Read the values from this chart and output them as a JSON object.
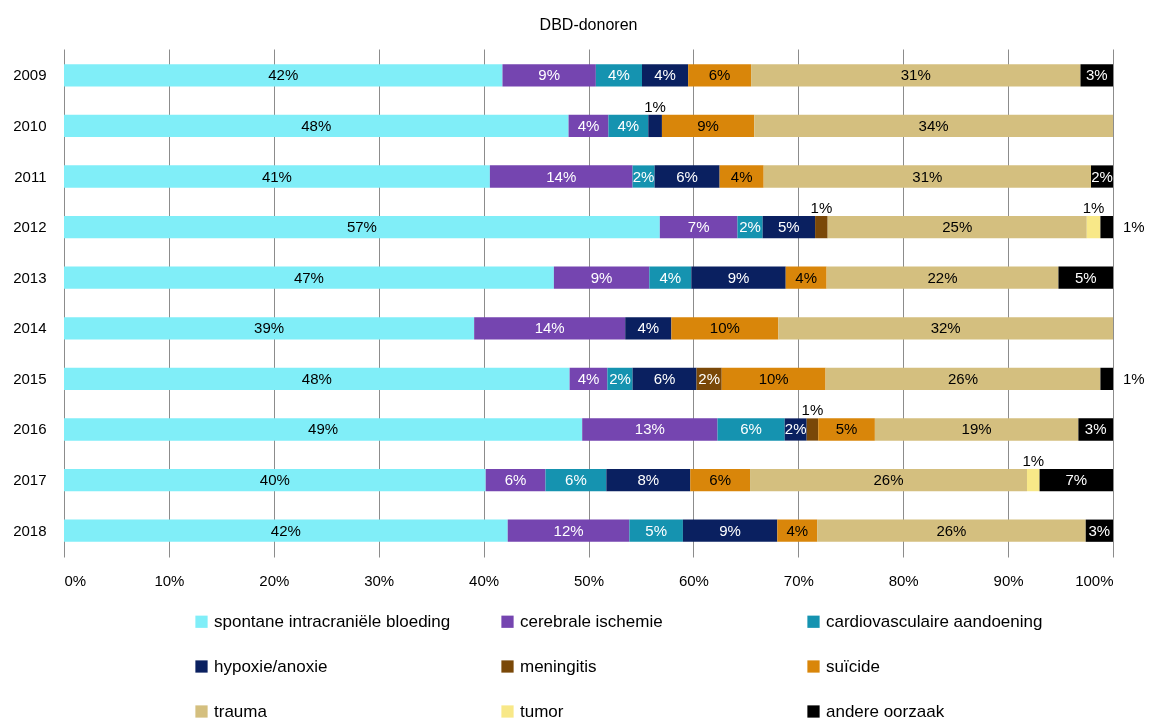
{
  "chart_data": {
    "type": "bar",
    "title": "DBD-donoren",
    "orientation": "horizontal",
    "stacked": true,
    "categories": [
      "2009",
      "2010",
      "2011",
      "2012",
      "2013",
      "2014",
      "2015",
      "2016",
      "2017",
      "2018"
    ],
    "series": [
      {
        "name": "spontane intracraniële bloeding",
        "color": "#80eef8",
        "values": [
          41.8,
          48.1,
          40.6,
          56.8,
          46.7,
          39.1,
          48.2,
          49.4,
          40.2,
          42.3
        ],
        "value_labels": [
          "42%",
          "48%",
          "41%",
          "57%",
          "47%",
          "39%",
          "48%",
          "49%",
          "40%",
          "42%"
        ]
      },
      {
        "name": "cerebrale ischemie",
        "color": "#7545b0",
        "values": [
          8.9,
          3.8,
          13.6,
          7.4,
          9.1,
          14.4,
          3.6,
          12.9,
          5.7,
          11.6
        ],
        "value_labels": [
          "9%",
          "4%",
          "14%",
          "7%",
          "9%",
          "14%",
          "4%",
          "13%",
          "6%",
          "12%"
        ]
      },
      {
        "name": "cardiovasculaire aandoening",
        "color": "#1593b0",
        "values": [
          4.4,
          3.8,
          2.1,
          2.4,
          4.0,
          null,
          2.4,
          6.4,
          5.8,
          5.1
        ],
        "value_labels": [
          "4%",
          "4%",
          "2%",
          "2%",
          "4%",
          null,
          "2%",
          "6%",
          "6%",
          "5%"
        ]
      },
      {
        "name": "hypoxie/anoxie",
        "color": "#0a2060",
        "values": [
          4.4,
          1.3,
          6.2,
          5.0,
          9.0,
          4.4,
          6.1,
          2.1,
          8.0,
          9.0
        ],
        "value_labels": [
          "4%",
          "1%",
          "6%",
          "5%",
          "9%",
          "4%",
          "6%",
          "2%",
          "8%",
          "9%"
        ]
      },
      {
        "name": "meningitis",
        "color": "#7a4808",
        "values": [
          null,
          null,
          null,
          1.2,
          null,
          null,
          2.4,
          1.1,
          null,
          null
        ],
        "value_labels": [
          null,
          null,
          null,
          "1%",
          null,
          null,
          "2%",
          "1%",
          null,
          null
        ]
      },
      {
        "name": "suïcide",
        "color": "#d9860a",
        "values": [
          6.0,
          8.8,
          4.2,
          null,
          3.9,
          10.2,
          9.9,
          5.4,
          5.7,
          3.8
        ],
        "value_labels": [
          "6%",
          "9%",
          "4%",
          null,
          "4%",
          "10%",
          "10%",
          "5%",
          "6%",
          "4%"
        ]
      },
      {
        "name": "trauma",
        "color": "#d4bf7f",
        "values": [
          31.4,
          34.2,
          31.2,
          24.7,
          22.1,
          31.9,
          26.2,
          19.4,
          26.4,
          25.6
        ],
        "value_labels": [
          "31%",
          "34%",
          "31%",
          "25%",
          "22%",
          "32%",
          "26%",
          "19%",
          "26%",
          "26%"
        ]
      },
      {
        "name": "tumor",
        "color": "#f8e888",
        "values": [
          null,
          null,
          null,
          1.3,
          null,
          null,
          null,
          null,
          1.2,
          null
        ],
        "value_labels": [
          null,
          null,
          null,
          "1%",
          null,
          null,
          null,
          null,
          "1%",
          null
        ]
      },
      {
        "name": "andere oorzaak",
        "color": "#000000",
        "values": [
          3.1,
          null,
          2.1,
          1.2,
          5.2,
          null,
          1.2,
          3.3,
          7.0,
          2.6
        ],
        "value_labels": [
          "3%",
          null,
          "2%",
          "1%",
          "5%",
          null,
          "1%",
          "3%",
          "7%",
          "3%"
        ]
      }
    ],
    "xlim": [
      0,
      100
    ],
    "xticks": [
      {
        "value": 0,
        "label": "0%"
      },
      {
        "value": 10,
        "label": "10%"
      },
      {
        "value": 20,
        "label": "20%"
      },
      {
        "value": 30,
        "label": "30%"
      },
      {
        "value": 40,
        "label": "40%"
      },
      {
        "value": 50,
        "label": "50%"
      },
      {
        "value": 60,
        "label": "60%"
      },
      {
        "value": 70,
        "label": "70%"
      },
      {
        "value": 80,
        "label": "80%"
      },
      {
        "value": 90,
        "label": "90%"
      },
      {
        "value": 100,
        "label": "100%"
      }
    ],
    "grid": "x",
    "legend": "bottom"
  }
}
